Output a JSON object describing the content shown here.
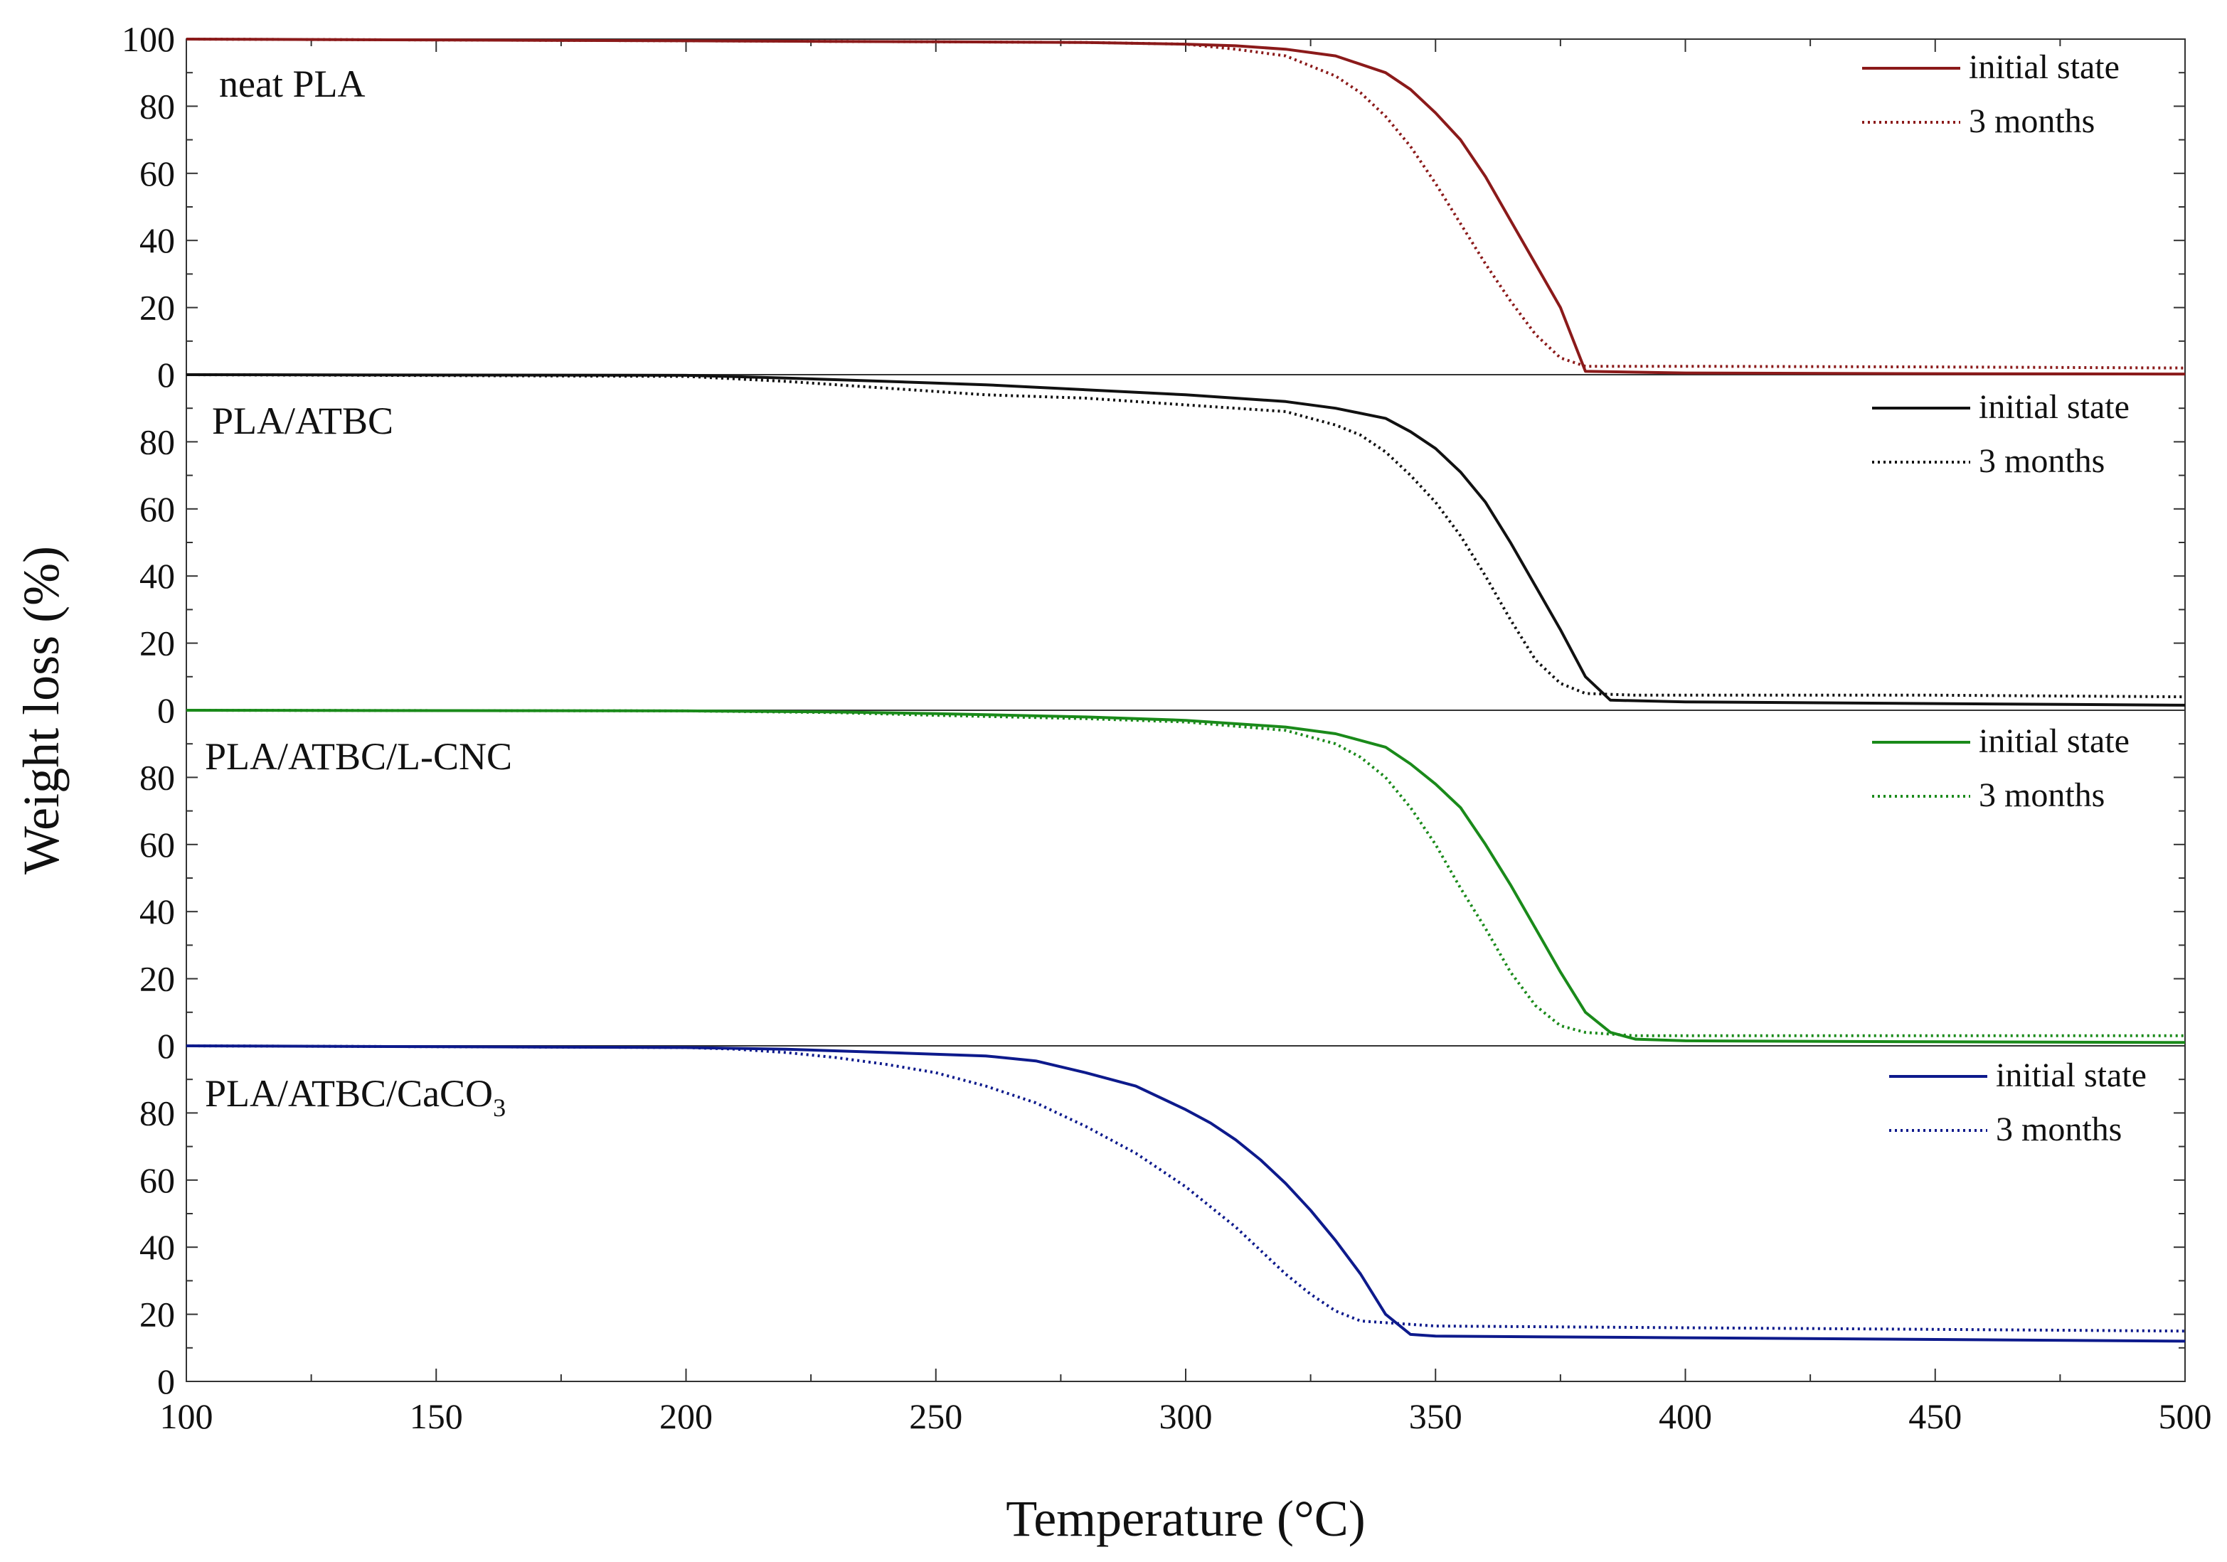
{
  "chart_data": {
    "type": "line",
    "xlabel": "Temperature (°C)",
    "ylabel": "Weight loss (%)",
    "xlim": [
      100,
      500
    ],
    "ylim": [
      0,
      100
    ],
    "x_ticks": [
      "100",
      "150",
      "200",
      "250",
      "300",
      "350",
      "400",
      "450",
      "500"
    ],
    "y_ticks_top": [
      "0",
      "20",
      "40",
      "60",
      "80",
      "100"
    ],
    "y_ticks_other": [
      "0",
      "20",
      "40",
      "60",
      "80"
    ],
    "legend_labels": {
      "initial": "initial state",
      "aged": "3 months"
    },
    "panels": [
      {
        "label": "neat PLA",
        "color": "#8b1a1a",
        "series": [
          {
            "name": "initial state",
            "style": "solid",
            "x": [
              100,
              200,
              250,
              280,
              300,
              310,
              320,
              330,
              340,
              345,
              350,
              355,
              360,
              365,
              370,
              375,
              380,
              400,
              450,
              500
            ],
            "y": [
              100,
              99.5,
              99.2,
              99,
              98.5,
              98,
              97,
              95,
              90,
              85,
              78,
              70,
              59,
              46,
              33,
              20,
              1,
              0.5,
              0.3,
              0.2
            ]
          },
          {
            "name": "3 months",
            "style": "dotted",
            "x": [
              100,
              200,
              250,
              280,
              300,
              310,
              320,
              330,
              335,
              340,
              345,
              350,
              355,
              360,
              365,
              370,
              375,
              380,
              400,
              450,
              500
            ],
            "y": [
              100,
              99.5,
              99.2,
              99,
              98.5,
              97,
              95,
              89,
              84,
              77,
              68,
              57,
              45,
              33,
              22,
              12,
              5,
              2.5,
              2.5,
              2.3,
              2
            ]
          }
        ]
      },
      {
        "label": "PLA/ATBC",
        "color": "#111111",
        "series": [
          {
            "name": "initial state",
            "style": "solid",
            "x": [
              100,
              200,
              220,
              240,
              260,
              280,
              300,
              320,
              330,
              340,
              345,
              350,
              355,
              360,
              365,
              370,
              375,
              380,
              385,
              400,
              450,
              500
            ],
            "y": [
              100,
              99.8,
              99,
              98,
              97,
              95.5,
              94,
              92,
              90,
              87,
              83,
              78,
              71,
              62,
              50,
              37,
              24,
              10,
              3,
              2.5,
              2,
              1.5
            ]
          },
          {
            "name": "3 months",
            "style": "dotted",
            "x": [
              100,
              200,
              220,
              240,
              260,
              280,
              300,
              320,
              330,
              335,
              340,
              345,
              350,
              355,
              360,
              365,
              370,
              375,
              380,
              390,
              450,
              500
            ],
            "y": [
              100,
              99.5,
              98,
              96,
              94,
              93,
              91,
              89,
              85,
              82,
              77,
              70,
              62,
              52,
              40,
              27,
              15,
              8,
              5,
              4.5,
              4.5,
              4
            ]
          }
        ]
      },
      {
        "label": "PLA/ATBC/L-CNC",
        "color": "#1a8a1a",
        "series": [
          {
            "name": "initial state",
            "style": "solid",
            "x": [
              100,
              200,
              230,
              250,
              280,
              300,
              320,
              330,
              340,
              345,
              350,
              355,
              360,
              365,
              370,
              375,
              380,
              385,
              390,
              400,
              450,
              500
            ],
            "y": [
              100,
              99.8,
              99.5,
              99,
              98,
              97,
              95,
              93,
              89,
              84,
              78,
              71,
              60,
              48,
              35,
              22,
              10,
              4,
              2,
              1.5,
              1.2,
              1
            ]
          },
          {
            "name": "3 months",
            "style": "dotted",
            "x": [
              100,
              200,
              230,
              250,
              280,
              300,
              320,
              330,
              335,
              340,
              345,
              350,
              355,
              360,
              365,
              370,
              375,
              380,
              385,
              390,
              450,
              500
            ],
            "y": [
              100,
              99.8,
              99.3,
              98.5,
              97.5,
              96.5,
              94,
              90,
              86,
              80,
              71,
              60,
              47,
              35,
              22,
              12,
              6,
              4,
              3.5,
              3,
              3,
              3
            ]
          }
        ]
      },
      {
        "label": "PLA/ATBC/CaCO₃",
        "color": "#0d1a8c",
        "series": [
          {
            "name": "initial state",
            "style": "solid",
            "x": [
              100,
              200,
              220,
              240,
              260,
              270,
              280,
              290,
              300,
              305,
              310,
              315,
              320,
              325,
              330,
              335,
              340,
              345,
              350,
              400,
              450,
              500
            ],
            "y": [
              100,
              99.5,
              99,
              98,
              97,
              95.5,
              92,
              88,
              81,
              77,
              72,
              66,
              59,
              51,
              42,
              32,
              20,
              14,
              13.5,
              13,
              12.5,
              12
            ]
          },
          {
            "name": "3 months",
            "style": "dotted",
            "x": [
              100,
              200,
              210,
              220,
              230,
              240,
              250,
              260,
              270,
              280,
              290,
              300,
              305,
              310,
              315,
              320,
              325,
              330,
              335,
              340,
              350,
              400,
              450,
              500
            ],
            "y": [
              100,
              99.5,
              99,
              98,
              96.5,
              94.5,
              92,
              88,
              83,
              76,
              68,
              58,
              52,
              46,
              39,
              32,
              26,
              21,
              18,
              17.5,
              16.5,
              16,
              15.5,
              15
            ]
          }
        ]
      }
    ]
  }
}
